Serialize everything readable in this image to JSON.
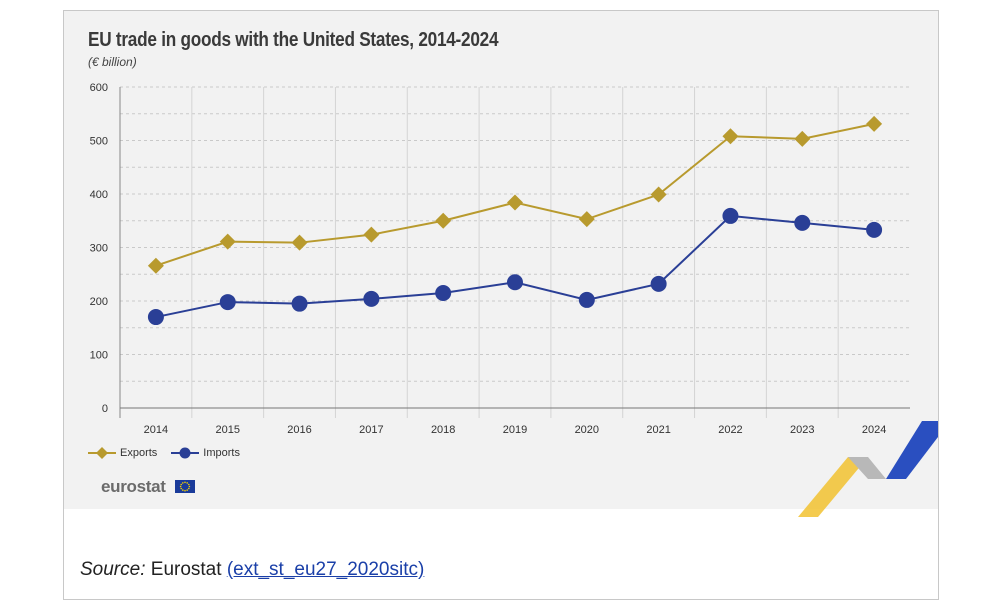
{
  "chart_data": {
    "type": "line",
    "title": "EU trade in goods with the United States, 2014-2024",
    "subtitle": "(€ billion)",
    "categories": [
      "2014",
      "2015",
      "2016",
      "2017",
      "2018",
      "2019",
      "2020",
      "2021",
      "2022",
      "2023",
      "2024"
    ],
    "series": [
      {
        "name": "Exports",
        "values": [
          266,
          311,
          309,
          324,
          350,
          384,
          353,
          399,
          508,
          503,
          531
        ],
        "color": "#b89a2e",
        "marker": "diamond"
      },
      {
        "name": "Imports",
        "values": [
          170,
          198,
          195,
          204,
          215,
          235,
          202,
          232,
          359,
          346,
          333
        ],
        "color": "#2a3f96",
        "marker": "circle"
      }
    ],
    "yticks": [
      "0",
      "100",
      "200",
      "300",
      "400",
      "500",
      "600"
    ],
    "ylim": [
      0,
      600
    ],
    "grid": true,
    "legend": "bottom-left"
  },
  "brand": {
    "logo": "eurostat",
    "colors": {
      "panel": "#f2f2f2",
      "exports": "#b89a2e",
      "imports": "#2a3f96"
    }
  },
  "source": {
    "label": "Source:",
    "name": "Eurostat",
    "link_text": "(ext_st_eu27_2020sitc)"
  }
}
